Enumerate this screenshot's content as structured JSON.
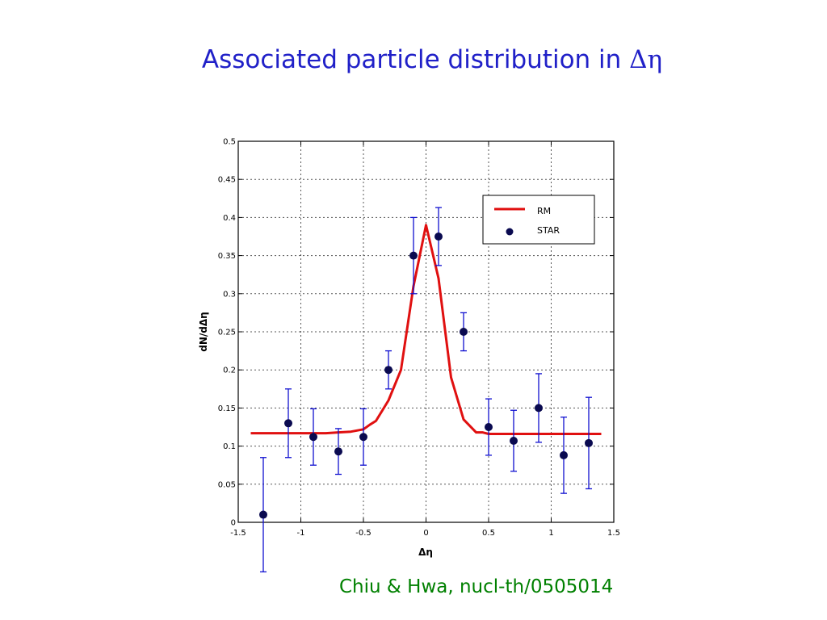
{
  "slide": {
    "title_text": "Associated particle distribution in ",
    "title_symbol": "Δη",
    "citation": "Chiu & Hwa, nucl-th/0505014"
  },
  "colors": {
    "title": "#2020c8",
    "citation": "#008000",
    "model_line": "#e01010",
    "data_points": "#0a0a50",
    "error_bars": "#1010d0"
  },
  "chart_data": {
    "type": "scatter",
    "xlabel": "Δη",
    "ylabel": "dN/dΔη",
    "xlim": [
      -1.5,
      1.5
    ],
    "ylim": [
      0,
      0.5
    ],
    "xticks": [
      -1.5,
      -1,
      -0.5,
      0,
      0.5,
      1,
      1.5
    ],
    "xtick_labels": [
      "-1.5",
      "-1",
      "-0.5",
      "0",
      "0.5",
      "1",
      "1.5"
    ],
    "yticks": [
      0,
      0.05,
      0.1,
      0.15,
      0.2,
      0.25,
      0.3,
      0.35,
      0.4,
      0.45,
      0.5
    ],
    "ytick_labels": [
      "0",
      "0.05",
      "0.1",
      "0.15",
      "0.2",
      "0.25",
      "0.3",
      "0.35",
      "0.4",
      "0.45",
      "0.5"
    ],
    "grid": true,
    "legend_position": "top-right",
    "series": [
      {
        "name": "RM",
        "kind": "line",
        "x": [
          -1.4,
          -1.3,
          -1.2,
          -1.1,
          -1.0,
          -0.9,
          -0.8,
          -0.7,
          -0.6,
          -0.5,
          -0.45,
          -0.4,
          -0.3,
          -0.2,
          -0.1,
          0.0,
          0.1,
          0.2,
          0.3,
          0.4,
          0.45,
          0.5,
          0.6,
          0.7,
          0.8,
          0.9,
          1.0,
          1.1,
          1.2,
          1.3,
          1.4
        ],
        "y": [
          0.117,
          0.117,
          0.117,
          0.117,
          0.117,
          0.117,
          0.117,
          0.118,
          0.119,
          0.122,
          0.128,
          0.133,
          0.16,
          0.2,
          0.31,
          0.39,
          0.32,
          0.19,
          0.135,
          0.118,
          0.118,
          0.116,
          0.116,
          0.116,
          0.116,
          0.116,
          0.116,
          0.116,
          0.116,
          0.116,
          0.116
        ]
      },
      {
        "name": "STAR",
        "kind": "points_with_errors",
        "x": [
          -1.3,
          -1.1,
          -0.9,
          -0.7,
          -0.5,
          -0.3,
          -0.1,
          0.1,
          0.3,
          0.5,
          0.7,
          0.9,
          1.1,
          1.3
        ],
        "y": [
          0.01,
          0.13,
          0.112,
          0.093,
          0.112,
          0.2,
          0.35,
          0.375,
          0.25,
          0.125,
          0.107,
          0.15,
          0.088,
          0.104
        ],
        "err": [
          0.075,
          0.045,
          0.037,
          0.03,
          0.037,
          0.025,
          0.05,
          0.038,
          0.025,
          0.037,
          0.04,
          0.045,
          0.05,
          0.06
        ]
      }
    ]
  }
}
